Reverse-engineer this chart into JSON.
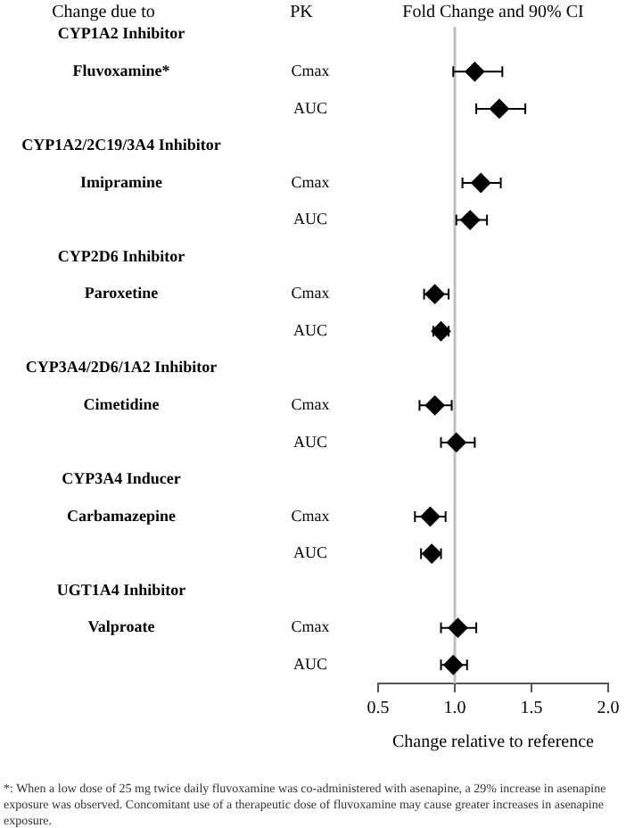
{
  "chart_data": {
    "type": "scatter",
    "orientation": "horizontal",
    "title": "Fold Change and 90% CI",
    "xlabel": "Change relative to reference",
    "categories": [
      null,
      "Cmax",
      "AUC",
      null,
      "Cmax",
      "AUC",
      null,
      "Cmax",
      "AUC",
      null,
      "Cmax",
      "AUC",
      null,
      "Cmax",
      "AUC",
      null,
      "Cmax",
      "AUC"
    ],
    "series": [
      {
        "color": "#000000",
        "values": [
          null,
          1.13,
          1.29,
          null,
          1.17,
          1.1,
          null,
          0.87,
          0.91,
          null,
          0.87,
          1.01,
          null,
          0.84,
          0.85,
          null,
          1.02,
          0.99
        ],
        "errors": [
          null,
          [
            0.99,
            1.31
          ],
          [
            1.14,
            1.46
          ],
          null,
          [
            1.05,
            1.3
          ],
          [
            1.01,
            1.21
          ],
          null,
          [
            0.8,
            0.96
          ],
          [
            0.86,
            0.96
          ],
          null,
          [
            0.77,
            0.98
          ],
          [
            0.91,
            1.13
          ],
          null,
          [
            0.74,
            0.94
          ],
          [
            0.78,
            0.91
          ],
          null,
          [
            0.91,
            1.14
          ],
          [
            0.91,
            1.08
          ]
        ]
      }
    ],
    "xlim": [
      0.5,
      2.0
    ],
    "xticks": [
      {
        "value": 0.5,
        "label": "0.5"
      },
      {
        "value": 1,
        "label": "1.0"
      },
      {
        "value": 1.5,
        "label": "1.5"
      },
      {
        "value": 2,
        "label": "2.0"
      }
    ],
    "ref_lines": [
      {
        "axis": "x",
        "value": 1,
        "color": "#c0c0c0"
      }
    ],
    "marker": "diamond",
    "grid": false,
    "legend": false,
    "annotations": [
      "Change due to",
      "PK",
      "CYP1A2 Inhibitor",
      "Fluvoxamine*",
      "CYP1A2/2C19/3A4 Inhibitor",
      "Imipramine",
      "CYP2D6 Inhibitor",
      "Paroxetine",
      "CYP3A4/2D6/1A2 Inhibitor",
      "Cimetidine",
      "CYP3A4 Inducer",
      "Carbamazepine",
      "UGT1A4 Inhibitor",
      "Valproate",
      "*: When a low dose of 25 mg twice daily fluvoxamine was co-administered with asenapine, a 29% increase in asenapine exposure was observed. Concomitant use of a therapeutic dose of fluvoxamine may cause greater increases in asenapine exposure."
    ]
  }
}
